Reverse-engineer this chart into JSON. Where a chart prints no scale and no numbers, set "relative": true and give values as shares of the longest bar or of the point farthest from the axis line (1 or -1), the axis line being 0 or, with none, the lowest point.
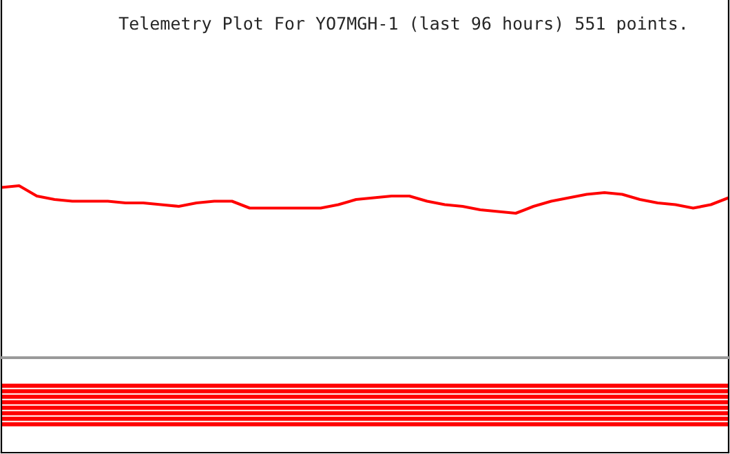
{
  "chart_data": [
    {
      "type": "line",
      "title": "Telemetry Plot For YO7MGH-1 (last 96 hours) 551 points.",
      "relative": true,
      "categories": [
        null,
        null,
        null,
        null,
        null,
        null,
        null,
        null,
        null,
        null,
        null,
        null,
        null,
        null,
        null,
        null,
        null,
        null,
        null,
        null,
        null,
        null,
        null,
        null,
        null,
        null,
        null,
        null,
        null,
        null,
        null,
        null,
        null,
        null,
        null,
        null,
        null,
        null,
        null,
        null,
        null,
        null
      ],
      "series": [
        {
          "color": "#ff0000",
          "values": [
            0.99,
            1.0,
            0.94,
            0.92,
            0.91,
            0.91,
            0.91,
            0.9,
            0.9,
            0.89,
            0.88,
            0.9,
            0.91,
            0.91,
            0.87,
            0.87,
            0.87,
            0.87,
            0.87,
            0.89,
            0.92,
            0.93,
            0.94,
            0.94,
            0.91,
            0.89,
            0.88,
            0.86,
            0.85,
            0.84,
            0.88,
            0.91,
            0.93,
            0.95,
            0.96,
            0.95,
            0.92,
            0.9,
            0.89,
            0.87,
            0.89,
            0.93
          ]
        }
      ]
    },
    {
      "type": "bar",
      "orientation": "horizontal",
      "relative": true,
      "categories": [
        null,
        null,
        null,
        null,
        null,
        null,
        null,
        null
      ],
      "series": [
        {
          "color": "#ff0000",
          "values": [
            1,
            1,
            1,
            1,
            1,
            1,
            1,
            1
          ]
        }
      ]
    }
  ]
}
